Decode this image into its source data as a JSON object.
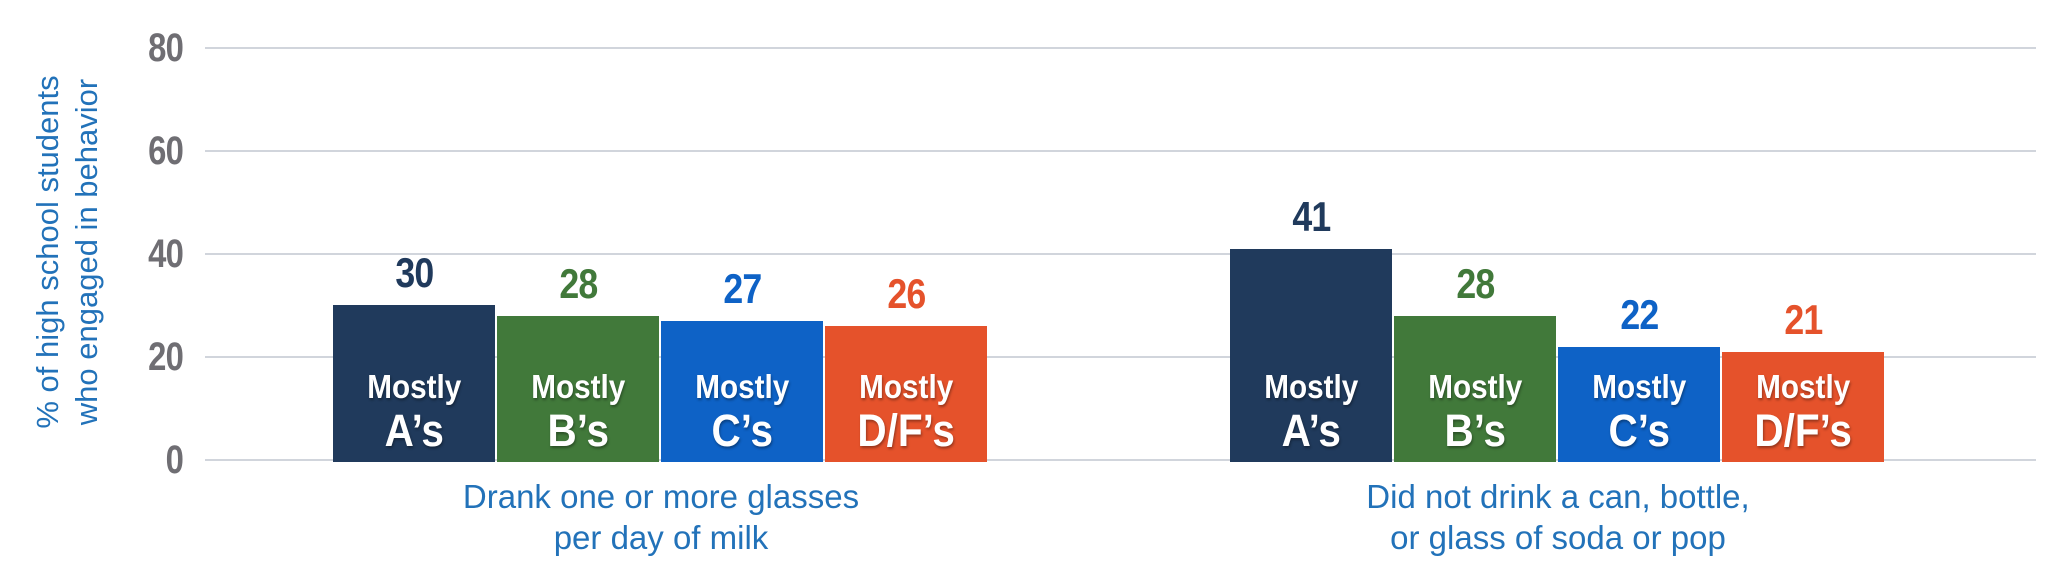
{
  "chart_data": {
    "type": "bar",
    "title": "",
    "ylabel": "% of high school students who engaged in behavior",
    "ylabel_line1": "% of high school students",
    "ylabel_line2": "who engaged in behavior",
    "ylim": [
      0,
      80
    ],
    "yticks": [
      "80",
      "60",
      "40",
      "20",
      "0"
    ],
    "ytick_values": [
      80,
      60,
      40,
      20,
      0
    ],
    "grid": "horizontal",
    "legend": "none (category labels printed inside bars)",
    "categories": [
      "Mostly A’s",
      "Mostly B’s",
      "Mostly C’s",
      "Mostly D/F’s"
    ],
    "series": [
      {
        "name": "Drank one or more glasses per day of milk",
        "values": [
          30,
          28,
          27,
          26
        ]
      },
      {
        "name": "Did not drink a can, bottle, or glass of soda or pop",
        "values": [
          41,
          28,
          22,
          21
        ]
      }
    ],
    "groups": [
      {
        "label": "Drank one or more glasses per day of milk",
        "label_line1": "Drank one or more glasses",
        "label_line2": "per day of milk",
        "bars": [
          {
            "cat_line1": "Mostly",
            "cat_line2": "A’s",
            "value": 30,
            "color": "#203a5c"
          },
          {
            "cat_line1": "Mostly",
            "cat_line2": "B’s",
            "value": 28,
            "color": "#41793a"
          },
          {
            "cat_line1": "Mostly",
            "cat_line2": "C’s",
            "value": 27,
            "color": "#0e62c6"
          },
          {
            "cat_line1": "Mostly",
            "cat_line2": "D/F’s",
            "value": 26,
            "color": "#e5522b"
          }
        ]
      },
      {
        "label": "Did not drink a can, bottle, or glass of soda or pop",
        "label_line1": "Did not drink a can, bottle,",
        "label_line2": "or glass of soda or pop",
        "bars": [
          {
            "cat_line1": "Mostly",
            "cat_line2": "A’s",
            "value": 41,
            "color": "#203a5c"
          },
          {
            "cat_line1": "Mostly",
            "cat_line2": "B’s",
            "value": 28,
            "color": "#41793a"
          },
          {
            "cat_line1": "Mostly",
            "cat_line2": "C’s",
            "value": 22,
            "color": "#0e62c6"
          },
          {
            "cat_line1": "Mostly",
            "cat_line2": "D/F’s",
            "value": 21,
            "color": "#e5522b"
          }
        ]
      }
    ],
    "colors": {
      "navy": "#203a5c",
      "green": "#41793a",
      "blue": "#0e62c6",
      "orange": "#e5522b",
      "tick_gray": "#6f6e73",
      "gridline": "#d1d5dc",
      "label_blue": "#2272b9",
      "bar_text": "#ffffff"
    }
  }
}
